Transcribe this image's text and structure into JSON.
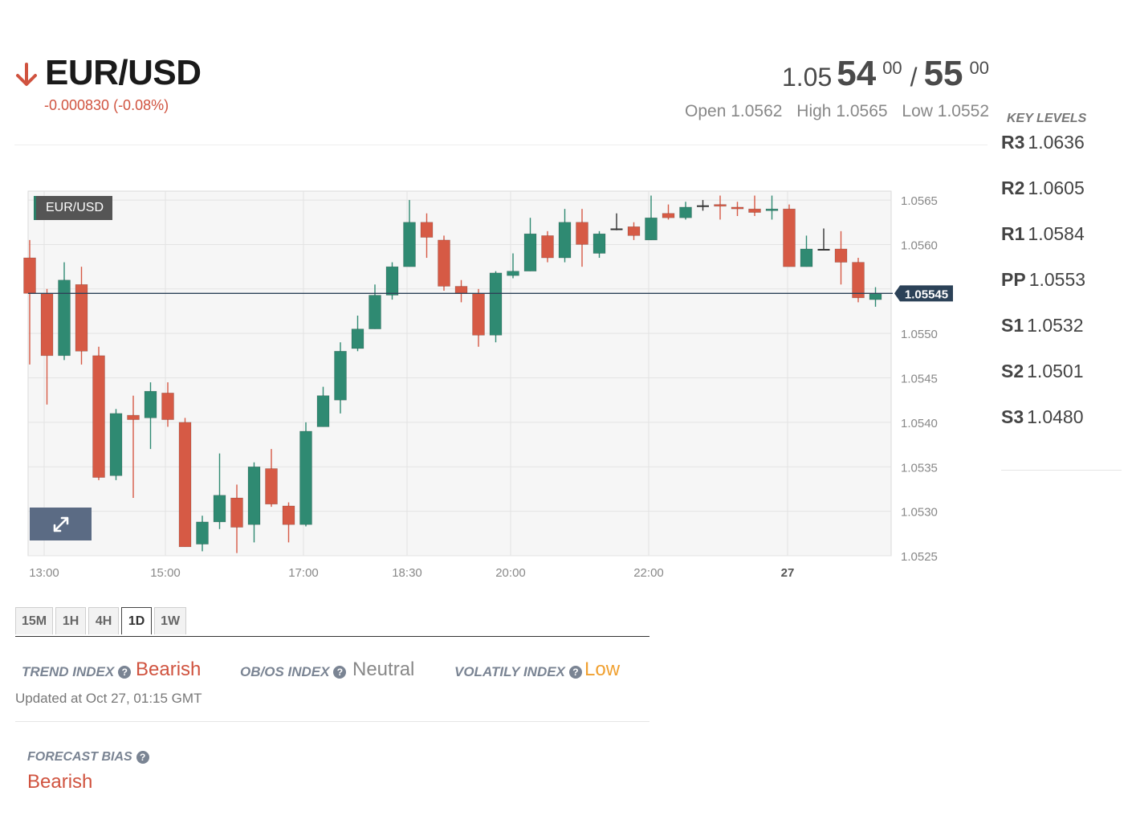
{
  "instrument": {
    "name": "EUR/USD",
    "direction": "down",
    "change": "-0.000830 (-0.08%)"
  },
  "quote": {
    "bid_prefix": "1.05",
    "bid_big": "54",
    "bid_sup": "00",
    "separator": "/",
    "ask_big": "55",
    "ask_sup": "00"
  },
  "ohl": {
    "open": "Open 1.0562",
    "high": "High 1.0565",
    "low": "Low 1.0552"
  },
  "key_levels": {
    "title": "KEY LEVELS",
    "items": [
      {
        "label": "R3",
        "value": "1.0636"
      },
      {
        "label": "R2",
        "value": "1.0605"
      },
      {
        "label": "R1",
        "value": "1.0584"
      },
      {
        "label": "PP",
        "value": "1.0553"
      },
      {
        "label": "S1",
        "value": "1.0532"
      },
      {
        "label": "S2",
        "value": "1.0501"
      },
      {
        "label": "S3",
        "value": "1.0480"
      }
    ]
  },
  "chart": {
    "badge": "EUR/USD",
    "current_price_label": "1.05545",
    "expand_icon": "expand-icon"
  },
  "chart_data": {
    "type": "candlestick",
    "ylim": [
      1.0525,
      1.0566
    ],
    "current_price": 1.05545,
    "y_ticks": [
      "1.0565",
      "1.0560",
      "1.0555",
      "1.0550",
      "1.0545",
      "1.0540",
      "1.0535",
      "1.0530",
      "1.0525"
    ],
    "x_ticks": [
      {
        "label": "13:00",
        "bold": false
      },
      {
        "label": "15:00",
        "bold": false
      },
      {
        "label": "17:00",
        "bold": false
      },
      {
        "label": "18:30",
        "bold": false
      },
      {
        "label": "20:00",
        "bold": false
      },
      {
        "label": "22:00",
        "bold": false
      },
      {
        "label": "27",
        "bold": true
      }
    ],
    "candles": [
      {
        "o": 1.05585,
        "h": 1.05605,
        "l": 1.05465,
        "c": 1.05545
      },
      {
        "o": 1.05545,
        "h": 1.0555,
        "l": 1.0542,
        "c": 1.05475
      },
      {
        "o": 1.05475,
        "h": 1.0558,
        "l": 1.0547,
        "c": 1.0556
      },
      {
        "o": 1.05555,
        "h": 1.05575,
        "l": 1.05465,
        "c": 1.0548
      },
      {
        "o": 1.05475,
        "h": 1.05485,
        "l": 1.05335,
        "c": 1.05338
      },
      {
        "o": 1.0534,
        "h": 1.05415,
        "l": 1.05335,
        "c": 1.0541
      },
      {
        "o": 1.05408,
        "h": 1.0543,
        "l": 1.05315,
        "c": 1.05403
      },
      {
        "o": 1.05405,
        "h": 1.05445,
        "l": 1.0537,
        "c": 1.05435
      },
      {
        "o": 1.05433,
        "h": 1.05445,
        "l": 1.05395,
        "c": 1.05403
      },
      {
        "o": 1.054,
        "h": 1.05405,
        "l": 1.0526,
        "c": 1.0526
      },
      {
        "o": 1.05263,
        "h": 1.05295,
        "l": 1.05255,
        "c": 1.05288
      },
      {
        "o": 1.05288,
        "h": 1.05365,
        "l": 1.0528,
        "c": 1.05318
      },
      {
        "o": 1.05315,
        "h": 1.0533,
        "l": 1.05253,
        "c": 1.05282
      },
      {
        "o": 1.05285,
        "h": 1.05355,
        "l": 1.05265,
        "c": 1.0535
      },
      {
        "o": 1.05348,
        "h": 1.0537,
        "l": 1.05305,
        "c": 1.05308
      },
      {
        "o": 1.05306,
        "h": 1.0531,
        "l": 1.05265,
        "c": 1.05285
      },
      {
        "o": 1.05285,
        "h": 1.054,
        "l": 1.05283,
        "c": 1.0539
      },
      {
        "o": 1.05395,
        "h": 1.0544,
        "l": 1.05395,
        "c": 1.0543
      },
      {
        "o": 1.05425,
        "h": 1.0549,
        "l": 1.0541,
        "c": 1.0548
      },
      {
        "o": 1.05483,
        "h": 1.0552,
        "l": 1.0548,
        "c": 1.05505
      },
      {
        "o": 1.05505,
        "h": 1.05555,
        "l": 1.05505,
        "c": 1.05543
      },
      {
        "o": 1.05543,
        "h": 1.0558,
        "l": 1.05538,
        "c": 1.05575
      },
      {
        "o": 1.05575,
        "h": 1.0565,
        "l": 1.05575,
        "c": 1.05625
      },
      {
        "o": 1.05625,
        "h": 1.05635,
        "l": 1.05585,
        "c": 1.05608
      },
      {
        "o": 1.05605,
        "h": 1.0561,
        "l": 1.05548,
        "c": 1.05553
      },
      {
        "o": 1.05553,
        "h": 1.0556,
        "l": 1.05535,
        "c": 1.05545
      },
      {
        "o": 1.05545,
        "h": 1.0555,
        "l": 1.05485,
        "c": 1.05498
      },
      {
        "o": 1.05498,
        "h": 1.0557,
        "l": 1.0549,
        "c": 1.05568
      },
      {
        "o": 1.05565,
        "h": 1.0559,
        "l": 1.05562,
        "c": 1.0557
      },
      {
        "o": 1.0557,
        "h": 1.0563,
        "l": 1.0557,
        "c": 1.05612
      },
      {
        "o": 1.0561,
        "h": 1.05615,
        "l": 1.0558,
        "c": 1.05585
      },
      {
        "o": 1.05585,
        "h": 1.0564,
        "l": 1.0558,
        "c": 1.05625
      },
      {
        "o": 1.05625,
        "h": 1.0564,
        "l": 1.05575,
        "c": 1.056
      },
      {
        "o": 1.0559,
        "h": 1.05615,
        "l": 1.05585,
        "c": 1.05612
      },
      {
        "o": 1.05618,
        "h": 1.05635,
        "l": 1.05616,
        "c": 1.05617
      },
      {
        "o": 1.0562,
        "h": 1.05625,
        "l": 1.05605,
        "c": 1.0561
      },
      {
        "o": 1.05605,
        "h": 1.05655,
        "l": 1.05605,
        "c": 1.0563
      },
      {
        "o": 1.05635,
        "h": 1.05645,
        "l": 1.05628,
        "c": 1.0563
      },
      {
        "o": 1.0563,
        "h": 1.05648,
        "l": 1.05628,
        "c": 1.05642
      },
      {
        "o": 1.05643,
        "h": 1.0565,
        "l": 1.05638,
        "c": 1.05644
      },
      {
        "o": 1.05645,
        "h": 1.05655,
        "l": 1.05628,
        "c": 1.05643
      },
      {
        "o": 1.05642,
        "h": 1.05648,
        "l": 1.05632,
        "c": 1.0564
      },
      {
        "o": 1.0564,
        "h": 1.05655,
        "l": 1.05632,
        "c": 1.05636
      },
      {
        "o": 1.05638,
        "h": 1.05655,
        "l": 1.05628,
        "c": 1.0564
      },
      {
        "o": 1.0564,
        "h": 1.05645,
        "l": 1.05575,
        "c": 1.05575
      },
      {
        "o": 1.05575,
        "h": 1.0561,
        "l": 1.05575,
        "c": 1.05595
      },
      {
        "o": 1.05595,
        "h": 1.05618,
        "l": 1.05595,
        "c": 1.05595
      },
      {
        "o": 1.05595,
        "h": 1.05615,
        "l": 1.05555,
        "c": 1.0558
      },
      {
        "o": 1.0558,
        "h": 1.05585,
        "l": 1.05535,
        "c": 1.0554
      },
      {
        "o": 1.05538,
        "h": 1.05552,
        "l": 1.0553,
        "c": 1.05545
      }
    ],
    "colors": {
      "up": "#2f8a72",
      "down": "#d65a45",
      "neutral": "#333333"
    }
  },
  "timeframes": {
    "items": [
      "15M",
      "1H",
      "4H",
      "1D",
      "1W"
    ],
    "active": "1D"
  },
  "indexes": {
    "trend": {
      "label": "TREND INDEX",
      "value": "Bearish",
      "color": "#d0533f"
    },
    "obos": {
      "label": "OB/OS INDEX",
      "value": "Neutral",
      "color": "#888888"
    },
    "volatility": {
      "label": "VOLATILY INDEX",
      "value": "Low",
      "color": "#f0a030"
    },
    "help_glyph": "?"
  },
  "updated": "Updated at Oct 27, 01:15 GMT",
  "forecast": {
    "label": "FORECAST BIAS",
    "value": "Bearish",
    "color": "#d0533f"
  }
}
